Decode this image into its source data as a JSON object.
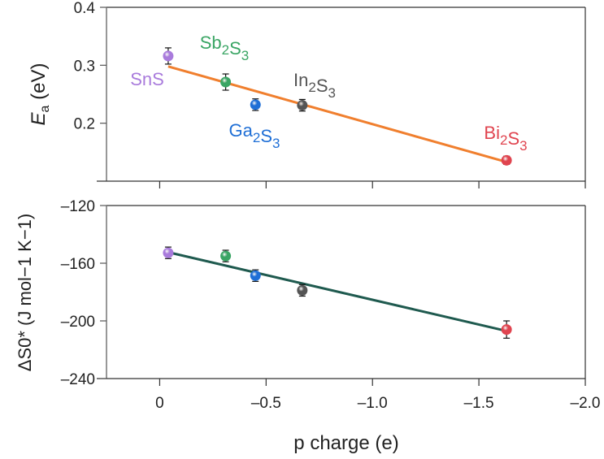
{
  "chart_data": [
    {
      "type": "scatter",
      "panel": "top",
      "ylabel": "E_a (eV)",
      "ylabel_main": "E",
      "ylabel_sub": "a",
      "ylabel_rest": " (eV)",
      "ylim": [
        0.1,
        0.4
      ],
      "yticks": [
        0.4,
        0.3,
        0.2
      ],
      "ytick_labels": [
        "0.4",
        "0.3",
        "0.2"
      ],
      "xlim": [
        0.25,
        -2.0
      ],
      "points": [
        {
          "name": "SnS",
          "label_parts": [
            [
              "SnS",
              ""
            ]
          ],
          "x": -0.04,
          "y": 0.316,
          "err": 0.014,
          "color": "#a97bdc"
        },
        {
          "name": "Sb2S3",
          "label_parts": [
            [
              "Sb",
              "2"
            ],
            [
              "S",
              "3"
            ]
          ],
          "x": -0.31,
          "y": 0.271,
          "err": 0.014,
          "color": "#3aa564"
        },
        {
          "name": "Ga2S3",
          "label_parts": [
            [
              "Ga",
              "2"
            ],
            [
              "S",
              "3"
            ]
          ],
          "x": -0.45,
          "y": 0.232,
          "err": 0.01,
          "color": "#1f6fd6"
        },
        {
          "name": "In2S3",
          "label_parts": [
            [
              "In",
              "2"
            ],
            [
              "S",
              "3"
            ]
          ],
          "x": -0.67,
          "y": 0.231,
          "err": 0.01,
          "color": "#555555"
        },
        {
          "name": "Bi2S3",
          "label_parts": [
            [
              "Bi",
              "2"
            ],
            [
              "S",
              "3"
            ]
          ],
          "x": -1.63,
          "y": 0.136,
          "err": 0.007,
          "color": "#e0444f"
        }
      ],
      "fit_line": {
        "x": [
          -0.04,
          -1.63
        ],
        "y": [
          0.298,
          0.133
        ],
        "color": "#f07f2e"
      }
    },
    {
      "type": "scatter",
      "panel": "bottom",
      "ylabel": "ΔS0* (J mol−1 K−1)",
      "ylim": [
        -240,
        -120
      ],
      "yticks": [
        -120,
        -160,
        -200,
        -240
      ],
      "ytick_labels": [
        "–120",
        "–160",
        "–200",
        "–240"
      ],
      "xlim": [
        0.25,
        -2.0
      ],
      "xticks": [
        0,
        -0.5,
        -1.0,
        -1.5,
        -2.0
      ],
      "xtick_labels": [
        "0",
        "–0.5",
        "–1.0",
        "–1.5",
        "–2.0"
      ],
      "xlabel": "p charge (e)",
      "points": [
        {
          "name": "SnS",
          "x": -0.04,
          "y": -152.8,
          "err": 4,
          "color": "#a97bdc"
        },
        {
          "name": "Sb2S3",
          "x": -0.31,
          "y": -155,
          "err": 4,
          "color": "#3aa564"
        },
        {
          "name": "Ga2S3",
          "x": -0.45,
          "y": -168.6,
          "err": 4,
          "color": "#1f6fd6"
        },
        {
          "name": "In2S3",
          "x": -0.67,
          "y": -178.8,
          "err": 4,
          "color": "#555555"
        },
        {
          "name": "Bi2S3",
          "x": -1.63,
          "y": -206,
          "err": 6,
          "color": "#e0444f"
        }
      ],
      "fit_line": {
        "x": [
          -0.04,
          -1.63
        ],
        "y": [
          -152.4,
          -207
        ],
        "color": "#1f5a4f"
      }
    }
  ]
}
